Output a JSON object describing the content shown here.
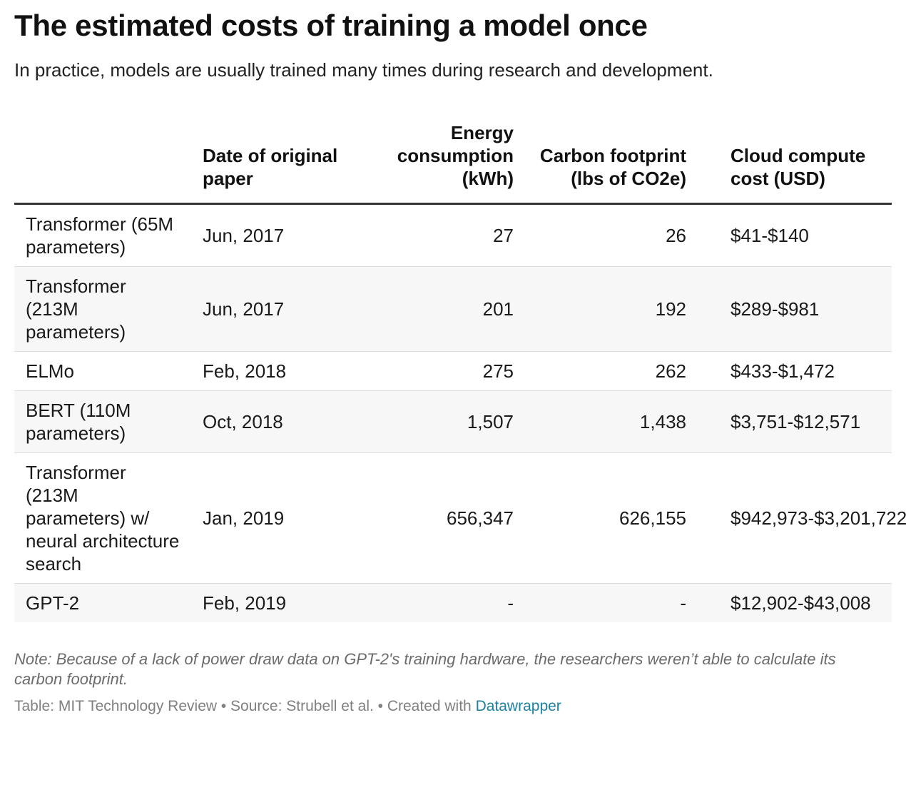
{
  "title": "The estimated costs of training a model once",
  "subtitle": "In practice, models are usually trained many times during research and development.",
  "chart_data": {
    "type": "table",
    "columns": [
      "",
      "Date of original paper",
      "Energy consumption (kWh)",
      "Carbon footprint (lbs of CO2e)",
      "Cloud compute cost (USD)"
    ],
    "rows": [
      [
        "Transformer (65M parameters)",
        "Jun, 2017",
        "27",
        "26",
        "$41-$140"
      ],
      [
        "Transformer (213M parameters)",
        "Jun, 2017",
        "201",
        "192",
        "$289-$981"
      ],
      [
        "ELMo",
        "Feb, 2018",
        "275",
        "262",
        "$433-$1,472"
      ],
      [
        "BERT (110M parameters)",
        "Oct, 2018",
        "1,507",
        "1,438",
        "$3,751-$12,571"
      ],
      [
        "Transformer (213M parameters) w/ neural architecture search",
        "Jan, 2019",
        "656,347",
        "626,155",
        "$942,973-$3,201,722"
      ],
      [
        "GPT-2",
        "Feb, 2019",
        "-",
        "-",
        "$12,902-$43,008"
      ]
    ]
  },
  "note": "Note: Because of a lack of power draw data on GPT-2's training hardware, the researchers weren’t able to calculate its carbon footprint.",
  "footer": {
    "credit": "Table: MIT Technology Review • Source: Strubell et al. • Created with ",
    "link": "Datawrapper"
  }
}
